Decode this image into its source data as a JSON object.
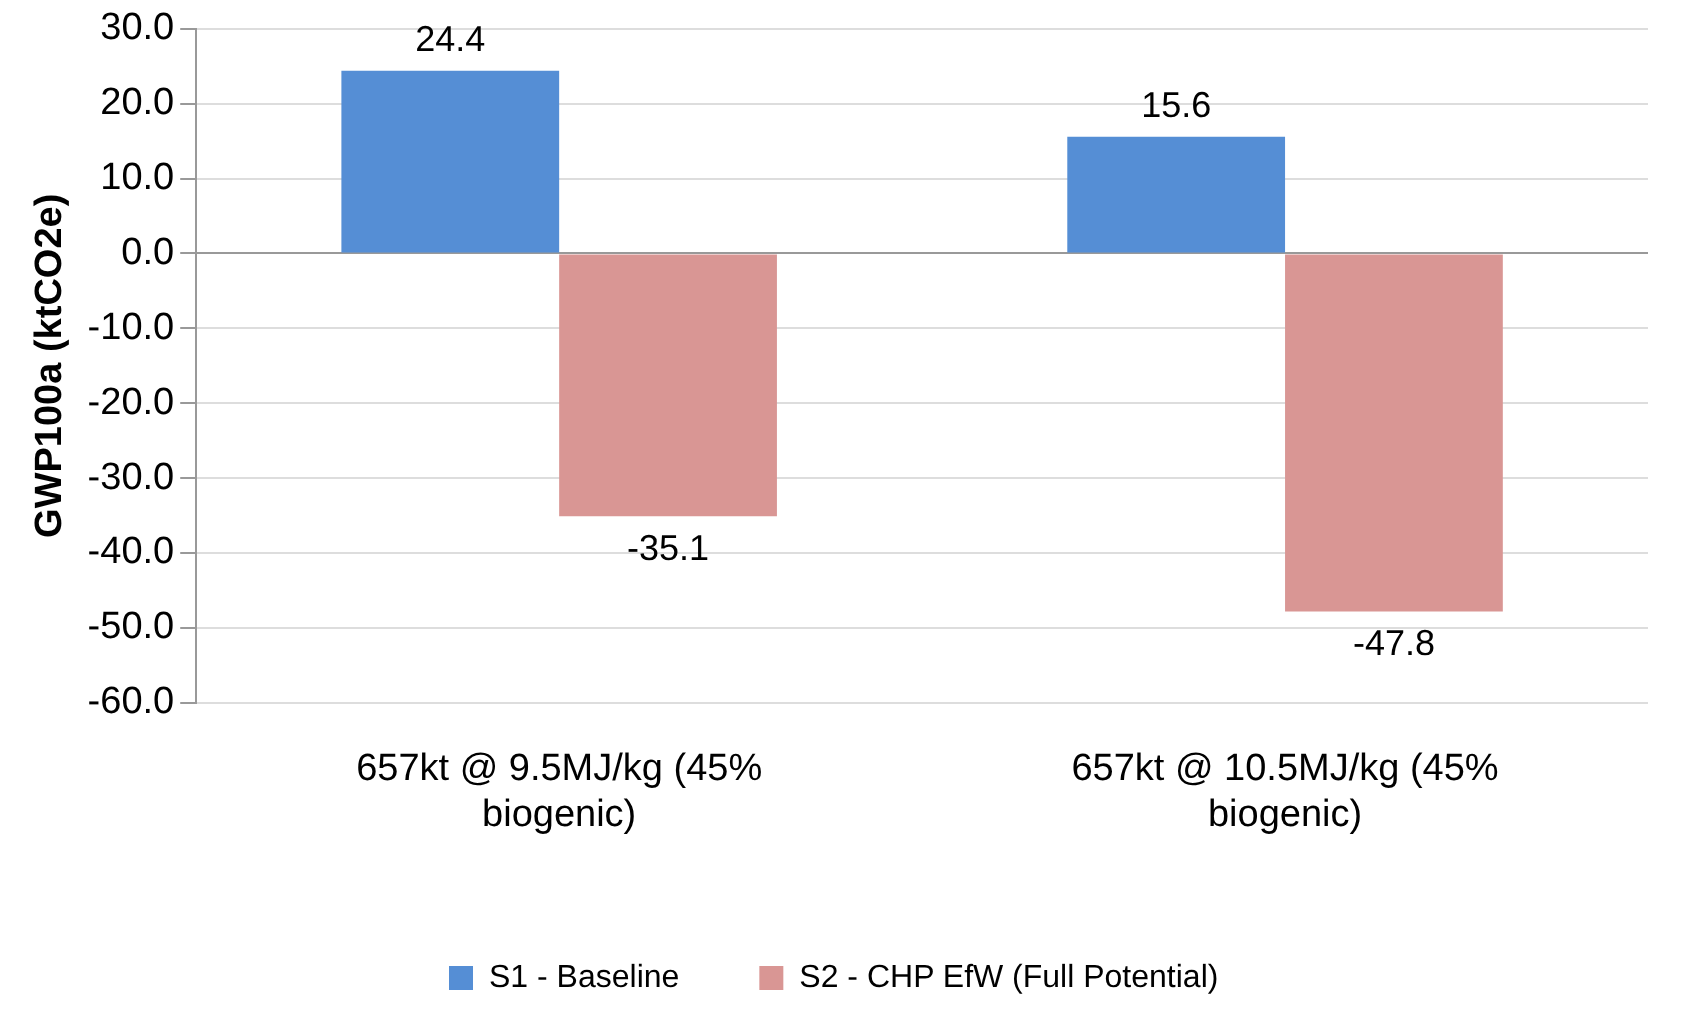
{
  "chart_data": {
    "type": "bar",
    "ylabel": "GWP100a (ktCO2e)",
    "categories": [
      "657kt @ 9.5MJ/kg (45% biogenic)",
      "657kt @ 10.5MJ/kg (45% biogenic)"
    ],
    "series": [
      {
        "name": "S1 - Baseline",
        "color": "#558ed5",
        "values": [
          24.4,
          15.6
        ]
      },
      {
        "name": "S2 - CHP EfW (Full Potential)",
        "color": "#d99694",
        "values": [
          -35.1,
          -47.8
        ]
      }
    ],
    "ylim": [
      -60,
      30
    ],
    "yticks": [
      {
        "value": -60,
        "label": "-60.0"
      },
      {
        "value": -50,
        "label": "-50.0"
      },
      {
        "value": -40,
        "label": "-40.0"
      },
      {
        "value": -30,
        "label": "-30.0"
      },
      {
        "value": -20,
        "label": "-20.0"
      },
      {
        "value": -10,
        "label": "-10.0"
      },
      {
        "value": 0,
        "label": "0.0"
      },
      {
        "value": 10,
        "label": "10.0"
      },
      {
        "value": 20,
        "label": "20.0"
      },
      {
        "value": 30,
        "label": "30.0"
      }
    ],
    "grid": "y",
    "legend": "bottom",
    "data_labels": true
  }
}
